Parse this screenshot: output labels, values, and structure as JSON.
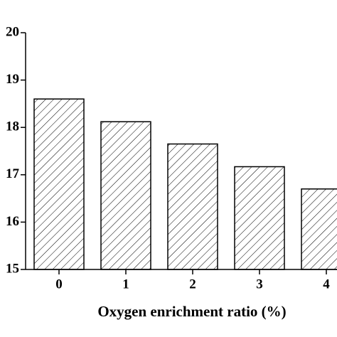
{
  "chart_data": {
    "type": "bar",
    "x_label": "Oxygen enrichment ratio (%)",
    "categories": [
      "0",
      "1",
      "2",
      "3",
      "4"
    ],
    "values": [
      18.6,
      18.12,
      17.65,
      17.17,
      16.7
    ],
    "color": "#000000",
    "ylim": [
      15,
      20
    ],
    "yticks": [
      15,
      16,
      17,
      18,
      19,
      20
    ]
  }
}
